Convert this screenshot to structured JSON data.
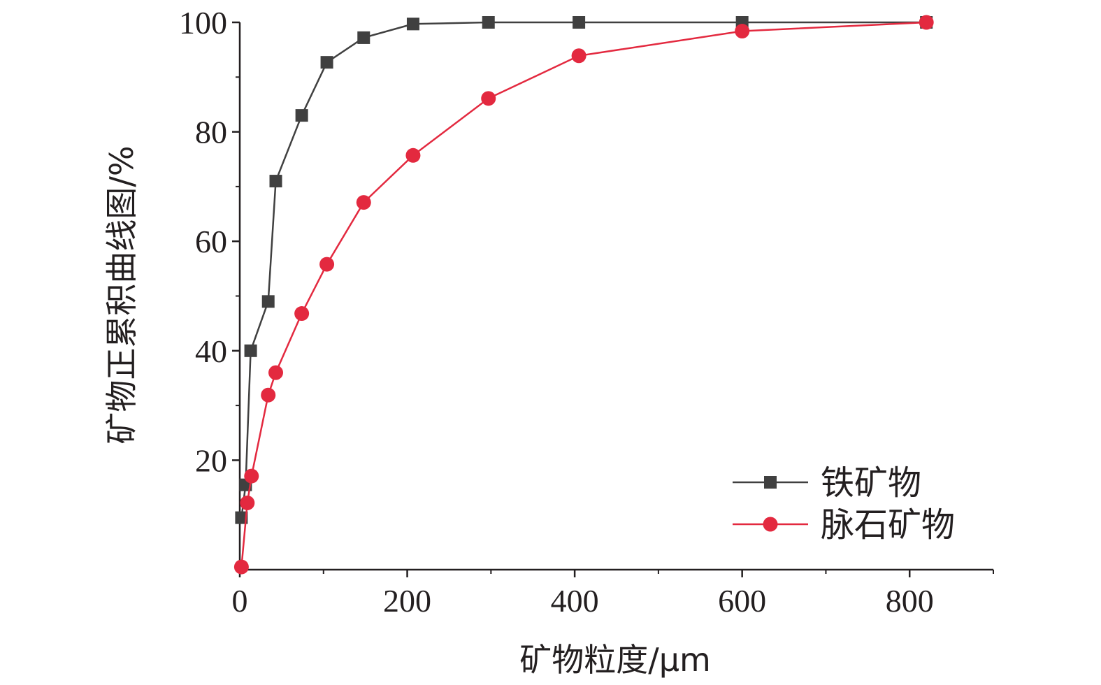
{
  "chart_data": {
    "type": "line",
    "xlabel": "矿物粒度/μm",
    "ylabel": "矿物正累积曲线图/%",
    "xlim": [
      0,
      900
    ],
    "ylim": [
      0,
      100
    ],
    "x_ticks": [
      0,
      200,
      400,
      600,
      800
    ],
    "y_ticks": [
      20,
      40,
      60,
      80,
      100
    ],
    "x_tick_labels": [
      "0",
      "200",
      "400",
      "600",
      "800"
    ],
    "y_tick_labels": [
      "20",
      "40",
      "60",
      "80",
      "100"
    ],
    "grid": false,
    "legend_position": "bottom-right",
    "series": [
      {
        "name": "铁矿物",
        "color": "#404040",
        "marker": "square",
        "x": [
          2,
          7,
          13,
          34,
          43,
          74,
          104,
          148,
          207,
          297,
          405,
          600,
          820
        ],
        "y": [
          9.5,
          15.5,
          40,
          49,
          71,
          83,
          92.7,
          97.2,
          99.7,
          100,
          100,
          100,
          100
        ]
      },
      {
        "name": "脉石矿物",
        "color": "#e3293f",
        "marker": "circle",
        "x": [
          2,
          9,
          14,
          34,
          43,
          74,
          104,
          148,
          207,
          297,
          405,
          600,
          820
        ],
        "y": [
          0.5,
          12.2,
          17.1,
          31.9,
          36,
          46.8,
          55.8,
          67.1,
          75.7,
          86.1,
          93.9,
          98.4,
          100
        ]
      }
    ]
  }
}
